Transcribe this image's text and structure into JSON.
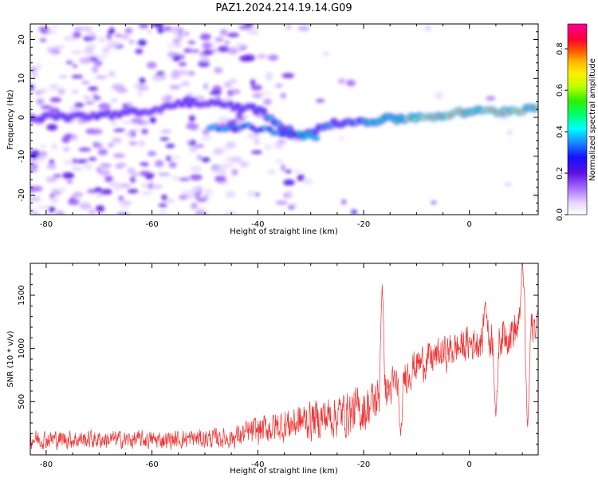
{
  "title": "PAZ1.2024.214.19.14.G09",
  "chart_data": [
    {
      "type": "heatmap",
      "xlabel": "Height of straight line (km)",
      "ylabel": "Frequency (Hz)",
      "xlim": [
        -83,
        13
      ],
      "ylim": [
        -25,
        24
      ],
      "xticks": [
        -80,
        -60,
        -40,
        -20,
        0
      ],
      "yticks": [
        -20,
        -10,
        0,
        10,
        20
      ],
      "grid": false,
      "colorbar": {
        "label": "Normalized spectral amplitude",
        "range": [
          0,
          0.92
        ],
        "ticks": [
          0.0,
          0.2,
          0.4,
          0.6,
          0.8
        ],
        "colormap": "gist_ncar-like rainbow (white → purple → blue → cyan → green → yellow → orange → red → magenta)"
      },
      "ridge": [
        {
          "x": -80,
          "y": 0.0
        },
        {
          "x": -70,
          "y": 0.5
        },
        {
          "x": -60,
          "y": 1.5
        },
        {
          "x": -54,
          "y": 4.0
        },
        {
          "x": -46,
          "y": 3.0
        },
        {
          "x": -40,
          "y": 2.0
        },
        {
          "x": -33,
          "y": -4.5
        },
        {
          "x": -25,
          "y": -1.5
        },
        {
          "x": -15,
          "y": -0.5
        },
        {
          "x": -10,
          "y": 0.0
        },
        {
          "x": -5,
          "y": 0.5
        },
        {
          "x": 0,
          "y": 1.5
        },
        {
          "x": 5,
          "y": 1.5
        },
        {
          "x": 10,
          "y": 2.0
        },
        {
          "x": 13,
          "y": 2.5
        }
      ],
      "secondary_ridge": [
        {
          "x": -49,
          "y": -2.5
        },
        {
          "x": -42,
          "y": -2.5
        },
        {
          "x": -36,
          "y": -4.0
        },
        {
          "x": -29,
          "y": -5.0
        }
      ]
    },
    {
      "type": "line",
      "xlabel": "Height of straight line (km)",
      "ylabel": "SNR (10 * v/v)",
      "xlim": [
        -83,
        13
      ],
      "ylim": [
        0,
        1800
      ],
      "xticks": [
        -80,
        -60,
        -40,
        -20,
        0
      ],
      "yticks": [
        500,
        1000,
        1500
      ],
      "grid": false,
      "series": [
        {
          "color": "#ee3333",
          "envelope": [
            {
              "x": -83,
              "mean": 150,
              "amp": 120
            },
            {
              "x": -60,
              "mean": 140,
              "amp": 110
            },
            {
              "x": -45,
              "mean": 160,
              "amp": 130
            },
            {
              "x": -40,
              "mean": 230,
              "amp": 180
            },
            {
              "x": -30,
              "mean": 330,
              "amp": 250
            },
            {
              "x": -20,
              "mean": 420,
              "amp": 300
            },
            {
              "x": -15,
              "mean": 620,
              "amp": 250
            },
            {
              "x": -10,
              "mean": 850,
              "amp": 220
            },
            {
              "x": -5,
              "mean": 950,
              "amp": 220
            },
            {
              "x": 0,
              "mean": 1050,
              "amp": 220
            },
            {
              "x": 5,
              "mean": 1100,
              "amp": 250
            },
            {
              "x": 10,
              "mean": 1200,
              "amp": 250
            },
            {
              "x": 13,
              "mean": 1200,
              "amp": 200
            }
          ],
          "features": [
            {
              "x": -16.5,
              "y": 1600
            },
            {
              "x": -13,
              "y": 180
            },
            {
              "x": 3,
              "y": 1450
            },
            {
              "x": 5,
              "y": 350
            },
            {
              "x": 10,
              "y": 1800
            },
            {
              "x": 11,
              "y": 250
            },
            {
              "x": 13,
              "y": 1350
            }
          ]
        }
      ]
    }
  ]
}
